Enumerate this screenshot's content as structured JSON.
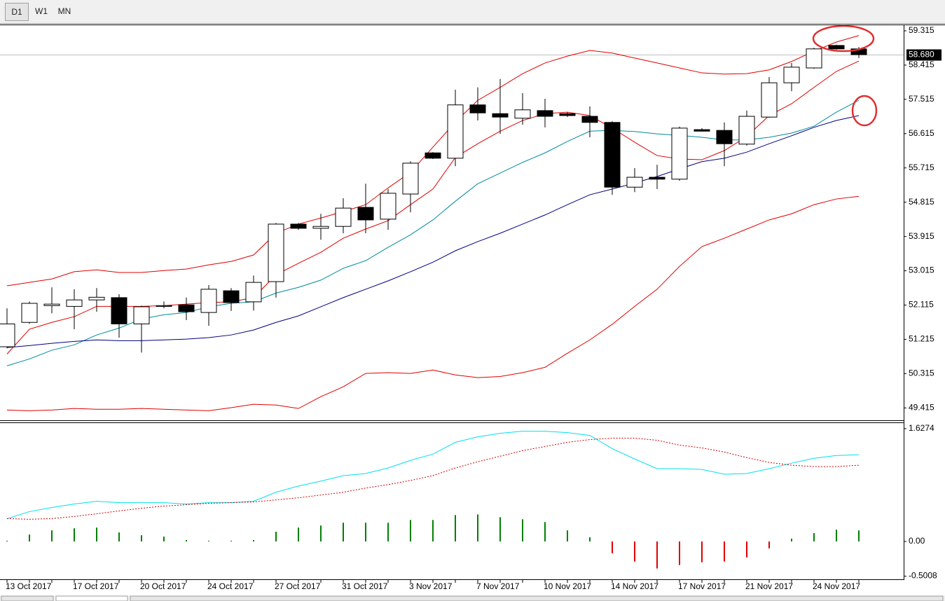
{
  "toolbar": [
    "D1",
    "W1",
    "MN"
  ],
  "chart_data": [
    {
      "type": "candlestick",
      "categories": [
        "13 Oct 2017",
        null,
        null,
        "17 Oct 2017",
        null,
        null,
        "20 Oct 2017",
        null,
        null,
        "24 Oct 2017",
        null,
        null,
        "27 Oct 2017",
        null,
        null,
        "31 Oct 2017",
        null,
        null,
        "3 Nov 2017",
        null,
        null,
        "7 Nov 2017",
        null,
        null,
        "10 Nov 2017",
        null,
        null,
        "14 Nov 2017",
        null,
        null,
        "17 Nov 2017",
        null,
        null,
        "21 Nov 2017",
        null,
        null,
        "24 Nov 2017",
        null,
        null
      ],
      "open": [
        51.02,
        51.66,
        52.1,
        52.08,
        52.25,
        52.31,
        51.62,
        52.08,
        52.12,
        51.92,
        52.49,
        52.2,
        52.73,
        54.24,
        54.13,
        54.18,
        54.68,
        54.37,
        55.03,
        56.11,
        55.97,
        57.37,
        57.14,
        57.02,
        57.22,
        57.14,
        57.07,
        56.91,
        55.21,
        55.47,
        55.42,
        56.72,
        56.7,
        56.34,
        57.05,
        57.95,
        58.34,
        58.93,
        58.84
      ],
      "high": [
        52.03,
        52.21,
        52.58,
        52.53,
        52.56,
        52.4,
        52.1,
        52.21,
        52.31,
        52.64,
        52.56,
        52.89,
        54.27,
        54.27,
        54.51,
        54.92,
        55.3,
        55.16,
        55.89,
        56.13,
        57.77,
        57.83,
        58.05,
        57.68,
        57.53,
        57.18,
        57.33,
        56.94,
        55.71,
        55.8,
        56.8,
        56.76,
        56.91,
        57.22,
        58.1,
        58.47,
        58.87,
        58.95,
        58.89
      ],
      "low": [
        50.98,
        51.62,
        51.9,
        51.48,
        51.94,
        51.26,
        50.87,
        52.03,
        51.72,
        51.57,
        51.96,
        51.97,
        52.31,
        54.09,
        53.83,
        54.0,
        54.0,
        54.09,
        54.55,
        55.95,
        55.76,
        56.96,
        56.61,
        56.85,
        56.78,
        57.05,
        56.52,
        55.01,
        55.08,
        55.16,
        55.38,
        56.67,
        55.76,
        56.3,
        57.03,
        57.73,
        58.32,
        58.82,
        58.6
      ],
      "close": [
        51.62,
        52.16,
        52.14,
        52.25,
        52.32,
        51.62,
        52.07,
        52.1,
        51.94,
        52.53,
        52.18,
        52.71,
        54.24,
        54.13,
        54.18,
        54.66,
        54.35,
        55.05,
        55.84,
        55.97,
        57.37,
        57.16,
        57.05,
        57.24,
        57.07,
        57.09,
        56.91,
        55.21,
        55.47,
        55.42,
        56.76,
        56.68,
        56.35,
        57.07,
        57.95,
        58.36,
        58.84,
        58.84,
        58.69
      ],
      "up_color": "#ffffff",
      "down_color": "#000000",
      "series": [
        {
          "color": "#e00000",
          "values": [
            52.62,
            52.71,
            52.8,
            52.99,
            53.04,
            52.97,
            52.97,
            53.02,
            53.06,
            53.17,
            53.26,
            53.43,
            54.0,
            54.24,
            54.4,
            54.57,
            54.75,
            55.19,
            55.6,
            56.26,
            56.92,
            57.49,
            57.83,
            58.19,
            58.47,
            58.65,
            58.8,
            58.73,
            58.6,
            58.47,
            58.34,
            58.21,
            58.18,
            58.19,
            58.29,
            58.51,
            58.78,
            59.02,
            59.19
          ]
        },
        {
          "color": "#e00000",
          "values": [
            50.83,
            51.48,
            51.66,
            51.81,
            52.08,
            52.08,
            52.08,
            52.1,
            52.14,
            52.18,
            52.2,
            52.31,
            52.91,
            53.21,
            53.5,
            53.87,
            54.11,
            54.33,
            54.75,
            55.16,
            55.99,
            56.35,
            56.68,
            56.96,
            57.14,
            57.18,
            57.09,
            56.76,
            56.39,
            56.04,
            55.95,
            55.93,
            56.17,
            56.54,
            57.09,
            57.4,
            57.83,
            58.25,
            58.52
          ]
        },
        {
          "color": "#e00000",
          "values": [
            49.36,
            49.34,
            49.36,
            49.4,
            49.38,
            49.38,
            49.4,
            49.38,
            49.36,
            49.34,
            49.42,
            49.51,
            49.49,
            49.4,
            49.71,
            49.97,
            50.32,
            50.34,
            50.32,
            50.41,
            50.28,
            50.21,
            50.24,
            50.34,
            50.48,
            50.85,
            51.2,
            51.61,
            52.08,
            52.53,
            53.13,
            53.65,
            53.87,
            54.11,
            54.35,
            54.51,
            54.75,
            54.9,
            54.97
          ]
        },
        {
          "color": "#008b9a",
          "values": [
            50.52,
            50.7,
            50.93,
            51.07,
            51.33,
            51.51,
            51.75,
            51.86,
            51.92,
            52.07,
            52.16,
            52.2,
            52.43,
            52.58,
            52.77,
            53.08,
            53.28,
            53.63,
            53.96,
            54.35,
            54.84,
            55.3,
            55.58,
            55.86,
            56.11,
            56.41,
            56.68,
            56.7,
            56.67,
            56.61,
            56.57,
            56.52,
            56.45,
            56.45,
            56.52,
            56.63,
            56.81,
            57.18,
            57.49
          ]
        },
        {
          "color": "#00007f",
          "values": [
            51.0,
            51.05,
            51.11,
            51.16,
            51.2,
            51.18,
            51.18,
            51.2,
            51.22,
            51.26,
            51.33,
            51.46,
            51.66,
            51.83,
            52.07,
            52.31,
            52.53,
            52.75,
            52.99,
            53.24,
            53.54,
            53.78,
            54.0,
            54.24,
            54.48,
            54.75,
            55.01,
            55.16,
            55.32,
            55.49,
            55.69,
            55.88,
            55.97,
            56.13,
            56.35,
            56.56,
            56.78,
            56.96,
            57.09
          ]
        }
      ],
      "current_price": {
        "value": 58.68,
        "label": "58.680"
      },
      "ylim": [
        49.09,
        59.48
      ],
      "yticks": [
        59.315,
        58.415,
        57.515,
        56.615,
        55.715,
        54.815,
        53.915,
        53.015,
        52.115,
        51.215,
        50.315,
        49.415
      ]
    },
    {
      "type": "macd",
      "series": [
        {
          "color": "#00e0ee",
          "style": "solid",
          "values": [
            0.33,
            0.43,
            0.49,
            0.54,
            0.58,
            0.56,
            0.56,
            0.56,
            0.54,
            0.56,
            0.56,
            0.58,
            0.71,
            0.8,
            0.87,
            0.95,
            0.98,
            1.06,
            1.17,
            1.26,
            1.43,
            1.51,
            1.56,
            1.59,
            1.59,
            1.57,
            1.53,
            1.34,
            1.19,
            1.05,
            1.05,
            1.04,
            0.97,
            0.98,
            1.05,
            1.13,
            1.2,
            1.24,
            1.25
          ]
        },
        {
          "color": "#d00000",
          "style": "dotted",
          "values": [
            0.33,
            0.32,
            0.33,
            0.36,
            0.4,
            0.44,
            0.48,
            0.51,
            0.53,
            0.55,
            0.56,
            0.57,
            0.6,
            0.63,
            0.67,
            0.71,
            0.77,
            0.82,
            0.88,
            0.95,
            1.06,
            1.15,
            1.23,
            1.31,
            1.37,
            1.43,
            1.47,
            1.49,
            1.49,
            1.46,
            1.39,
            1.35,
            1.29,
            1.21,
            1.14,
            1.1,
            1.08,
            1.08,
            1.1
          ]
        }
      ],
      "histogram": {
        "up_color": "#008000",
        "down_color": "#e00000",
        "values": [
          0.01,
          0.1,
          0.16,
          0.19,
          0.2,
          0.13,
          0.09,
          0.07,
          0.02,
          0.01,
          0.01,
          0.02,
          0.14,
          0.2,
          0.23,
          0.27,
          0.27,
          0.27,
          0.31,
          0.31,
          0.38,
          0.39,
          0.35,
          0.32,
          0.28,
          0.16,
          0.06,
          -0.17,
          -0.29,
          -0.39,
          -0.34,
          -0.3,
          -0.29,
          -0.23,
          -0.1,
          0.04,
          0.12,
          0.17,
          0.16
        ]
      },
      "ylim": [
        -0.556,
        1.718
      ],
      "yticks": [
        1.6274,
        {
          "value": 0,
          "label": "0.00"
        },
        -0.5008
      ]
    }
  ]
}
